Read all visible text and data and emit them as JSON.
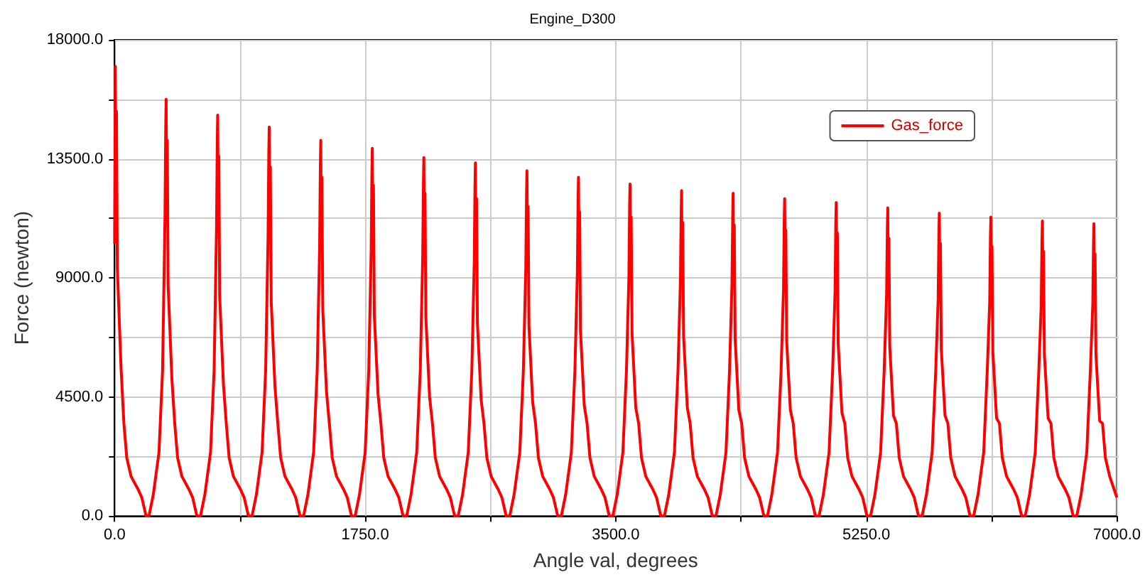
{
  "chart_data": {
    "type": "line",
    "title": "Engine_D300",
    "xlabel": "Angle val, degrees",
    "ylabel": "Force (newton)",
    "xlim": [
      0,
      7000
    ],
    "ylim": [
      0,
      18000
    ],
    "xticks": [
      {
        "value": 0,
        "label": "0.0"
      },
      {
        "value": 875,
        "label": null
      },
      {
        "value": 1750,
        "label": "1750.0"
      },
      {
        "value": 2625,
        "label": null
      },
      {
        "value": 3500,
        "label": "3500.0"
      },
      {
        "value": 4375,
        "label": null
      },
      {
        "value": 5250,
        "label": "5250.0"
      },
      {
        "value": 6125,
        "label": null
      },
      {
        "value": 7000,
        "label": "7000.0"
      }
    ],
    "yticks": [
      {
        "value": 0,
        "label": "0.0"
      },
      {
        "value": 2250,
        "label": null
      },
      {
        "value": 4500,
        "label": "4500.0"
      },
      {
        "value": 6750,
        "label": null
      },
      {
        "value": 9000,
        "label": "9000.0"
      },
      {
        "value": 11250,
        "label": null
      },
      {
        "value": 13500,
        "label": "13500.0"
      },
      {
        "value": 15750,
        "label": null
      },
      {
        "value": 18000,
        "label": "18000.0"
      }
    ],
    "grid": true,
    "legend": "top right",
    "marker": "none",
    "line_style": "solid",
    "series": [
      {
        "name": "Gas_force",
        "color": "#ff0000",
        "x": [
          0,
          5,
          9,
          13,
          19,
          45,
          65,
          85,
          115,
          165,
          190,
          220,
          240,
          270,
          310,
          335,
          352,
          357,
          360,
          364,
          368,
          374,
          400,
          420,
          440,
          470,
          520,
          545,
          575,
          600,
          630,
          670,
          695,
          712,
          717,
          720,
          724,
          728,
          734,
          760,
          780,
          800,
          830,
          880,
          905,
          935,
          960,
          990,
          1030,
          1055,
          1072,
          1077,
          1080,
          1084,
          1088,
          1094,
          1120,
          1140,
          1160,
          1190,
          1240,
          1265,
          1295,
          1320,
          1350,
          1390,
          1415,
          1432,
          1437,
          1440,
          1444,
          1448,
          1454,
          1480,
          1500,
          1520,
          1550,
          1600,
          1625,
          1655,
          1680,
          1710,
          1750,
          1775,
          1792,
          1797,
          1800,
          1804,
          1808,
          1814,
          1840,
          1860,
          1880,
          1910,
          1960,
          1985,
          2015,
          2040,
          2070,
          2110,
          2135,
          2152,
          2157,
          2160,
          2164,
          2168,
          2174,
          2200,
          2220,
          2240,
          2270,
          2320,
          2345,
          2375,
          2400,
          2430,
          2470,
          2495,
          2512,
          2517,
          2520,
          2524,
          2528,
          2534,
          2560,
          2580,
          2600,
          2630,
          2680,
          2705,
          2735,
          2760,
          2790,
          2830,
          2855,
          2872,
          2877,
          2880,
          2884,
          2888,
          2894,
          2920,
          2940,
          2960,
          2990,
          3040,
          3065,
          3095,
          3120,
          3150,
          3190,
          3215,
          3232,
          3237,
          3240,
          3244,
          3248,
          3254,
          3280,
          3300,
          3320,
          3350,
          3400,
          3425,
          3455,
          3480,
          3510,
          3550,
          3575,
          3592,
          3597,
          3600,
          3604,
          3608,
          3614,
          3640,
          3660,
          3680,
          3710,
          3760,
          3785,
          3815,
          3840,
          3870,
          3910,
          3935,
          3952,
          3957,
          3960,
          3964,
          3968,
          3974,
          4000,
          4020,
          4040,
          4070,
          4120,
          4145,
          4175,
          4200,
          4230,
          4270,
          4295,
          4312,
          4317,
          4320,
          4324,
          4328,
          4334,
          4360,
          4380,
          4400,
          4430,
          4480,
          4505,
          4535,
          4560,
          4590,
          4630,
          4655,
          4672,
          4677,
          4680,
          4684,
          4688,
          4694,
          4720,
          4740,
          4760,
          4790,
          4840,
          4865,
          4895,
          4920,
          4950,
          4990,
          5015,
          5032,
          5037,
          5040,
          5044,
          5048,
          5054,
          5080,
          5100,
          5120,
          5150,
          5200,
          5225,
          5255,
          5280,
          5310,
          5350,
          5375,
          5392,
          5397,
          5400,
          5404,
          5408,
          5414,
          5440,
          5460,
          5480,
          5510,
          5560,
          5585,
          5615,
          5640,
          5670,
          5710,
          5735,
          5752,
          5757,
          5760,
          5764,
          5768,
          5774,
          5800,
          5820,
          5840,
          5870,
          5920,
          5945,
          5975,
          6000,
          6030,
          6070,
          6095,
          6112,
          6117,
          6120,
          6124,
          6128,
          6134,
          6160,
          6180,
          6200,
          6230,
          6280,
          6305,
          6335,
          6360,
          6390,
          6430,
          6455,
          6472,
          6477,
          6480,
          6484,
          6488,
          6494,
          6520,
          6540,
          6560,
          6590,
          6640,
          6665,
          6695,
          6720,
          6750,
          6790,
          6815,
          6832,
          6837,
          6840,
          6844,
          6848,
          6854,
          6880,
          6900,
          6920,
          6950,
          7000
        ],
        "values": [
          10300,
          17000,
          12800,
          15300,
          9400,
          5600,
          3500,
          2200,
          1500,
          1000,
          700,
          0,
          0,
          800,
          2400,
          5500,
          11300,
          14600,
          15750,
          11800,
          14200,
          8700,
          5200,
          3500,
          2200,
          1500,
          1000,
          700,
          0,
          0,
          800,
          2400,
          5500,
          10900,
          14100,
          15150,
          11400,
          13600,
          8300,
          5000,
          3500,
          2200,
          1500,
          1000,
          700,
          0,
          0,
          800,
          2400,
          5500,
          10600,
          13700,
          14700,
          11000,
          13200,
          8100,
          4900,
          3500,
          2200,
          1500,
          1000,
          700,
          0,
          0,
          800,
          2400,
          5500,
          10200,
          13200,
          14200,
          10700,
          12800,
          7800,
          4700,
          3500,
          2200,
          1500,
          1000,
          700,
          0,
          0,
          800,
          2400,
          5500,
          10000,
          12900,
          13900,
          10400,
          12500,
          7600,
          4600,
          3500,
          2200,
          1500,
          1000,
          700,
          0,
          0,
          800,
          2400,
          5500,
          9800,
          12600,
          13550,
          10200,
          12200,
          7500,
          4500,
          3500,
          2200,
          1500,
          1000,
          700,
          0,
          0,
          800,
          2400,
          5500,
          9600,
          12400,
          13350,
          10000,
          12000,
          7300,
          4400,
          3500,
          2200,
          1500,
          1000,
          700,
          0,
          0,
          800,
          2400,
          5500,
          9400,
          12100,
          13050,
          9800,
          11700,
          7200,
          4300,
          3500,
          2200,
          1500,
          1000,
          700,
          0,
          0,
          800,
          2400,
          5500,
          9200,
          11900,
          12800,
          9600,
          11500,
          7000,
          4200,
          3500,
          2200,
          1500,
          1000,
          700,
          0,
          0,
          800,
          2400,
          5500,
          9000,
          11700,
          12550,
          9400,
          11300,
          6900,
          4100,
          3500,
          2200,
          1500,
          1000,
          700,
          0,
          0,
          800,
          2400,
          5500,
          8900,
          11400,
          12300,
          9200,
          11100,
          6800,
          4100,
          3500,
          2200,
          1500,
          1000,
          700,
          0,
          0,
          800,
          2400,
          5500,
          8800,
          11300,
          12200,
          9200,
          11000,
          6700,
          4000,
          3500,
          2200,
          1500,
          1000,
          700,
          0,
          0,
          800,
          2400,
          5500,
          8600,
          11200,
          12000,
          9000,
          10800,
          6600,
          4000,
          3500,
          2200,
          1500,
          1000,
          700,
          0,
          0,
          800,
          2400,
          5500,
          8500,
          11000,
          11850,
          8900,
          10700,
          6500,
          3900,
          3500,
          2200,
          1500,
          1000,
          700,
          0,
          0,
          800,
          2400,
          5500,
          8400,
          10800,
          11650,
          8700,
          10500,
          6400,
          3800,
          3500,
          2200,
          1500,
          1000,
          700,
          0,
          0,
          800,
          2400,
          5500,
          8200,
          10600,
          11450,
          8600,
          10300,
          6300,
          3800,
          3500,
          2200,
          1500,
          1000,
          700,
          0,
          0,
          800,
          2400,
          5500,
          8100,
          10500,
          11300,
          8500,
          10200,
          6200,
          3700,
          3500,
          2200,
          1500,
          1000,
          700,
          0,
          0,
          800,
          2400,
          5500,
          8000,
          10400,
          11150,
          8400,
          10000,
          6100,
          3700,
          3500,
          2200,
          1500,
          1000,
          700,
          0,
          0,
          800,
          2400,
          5500,
          8000,
          10300,
          11050,
          8300,
          9900,
          6100,
          3600,
          3500,
          2200,
          1500,
          700
        ]
      }
    ]
  }
}
